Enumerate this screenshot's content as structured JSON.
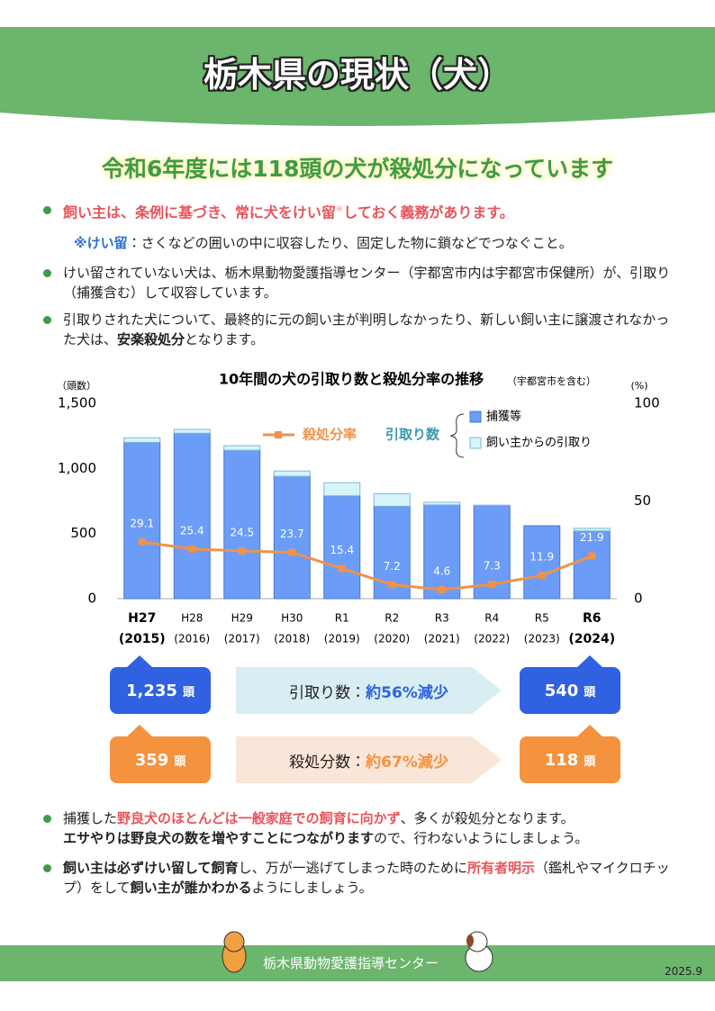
{
  "header": {
    "title": "栃木県の現状（犬）"
  },
  "headline": "令和6年度には118頭の犬が殺処分になっています",
  "intro": {
    "duty": [
      "飼い主は、条例に基づき、常に犬をけい留",
      "※",
      "しておく義務があります。"
    ],
    "note": [
      "※けい留",
      "：さくなどの囲いの中に収容したり、固定した物に鎖などでつなぐこと。"
    ],
    "p1": "けい留されていない犬は、栃木県動物愛護指導センター（宇都宮市内は宇都宮市保健所）が、引取り（捕獲含む）して収容しています。",
    "p2": [
      "引取りされた犬について、最終的に元の飼い主が判明しなかったり、新しい飼い主に譲渡されなかった犬は、",
      "安楽殺処分",
      "となります。"
    ]
  },
  "chart_data": {
    "type": "bar",
    "title": "10年間の犬の引取り数と殺処分率の推移",
    "subtitle": "（宇都宮市を含む）",
    "y_label": "（頭数）",
    "y2_label": "(%)",
    "legend_group": "引取り数",
    "categories": [
      "H27",
      "H28",
      "H29",
      "H30",
      "R1",
      "R2",
      "R3",
      "R4",
      "R5",
      "R6"
    ],
    "category_years": [
      "(2015)",
      "(2016)",
      "(2017)",
      "(2018)",
      "(2019)",
      "(2020)",
      "(2021)",
      "(2022)",
      "(2023)",
      "(2024)"
    ],
    "stacked": true,
    "series": [
      {
        "name": "捕獲等",
        "color": "#6b9cf7",
        "values": [
          1200,
          1270,
          1140,
          940,
          790,
          710,
          720,
          715,
          560,
          520
        ]
      },
      {
        "name": "飼い主からの引取り",
        "color": "#d6f5fb",
        "values": [
          35,
          30,
          35,
          40,
          100,
          95,
          20,
          3,
          0,
          20
        ]
      },
      {
        "name": "殺処分率",
        "color": "#f0924a",
        "type": "line",
        "axis": "y2",
        "values": [
          29.1,
          25.4,
          24.5,
          23.7,
          15.4,
          7.2,
          4.6,
          7.3,
          11.9,
          21.9
        ]
      }
    ],
    "ylim": [
      0,
      1500
    ],
    "yticks": [
      0,
      500,
      {
        "value": 1000,
        "label": "1,000"
      },
      {
        "value": 1500,
        "label": "1,500"
      }
    ],
    "y2lim": [
      0,
      100
    ],
    "y2ticks": [
      0,
      50,
      100
    ]
  },
  "comparison": {
    "unit": "頭",
    "intake": {
      "before": "1,235",
      "after": "540",
      "label": "引取り数：",
      "change": "約56%減少"
    },
    "euth": {
      "before": "359",
      "after": "118",
      "label": "殺処分数：",
      "change": "約67%減少"
    }
  },
  "outro": {
    "p3": [
      "捕獲した",
      "野良犬のほとんどは一般家庭での飼育に向かず",
      "、多くが殺処分となります。",
      "エサやりは野良犬の数を増やすことにつながります",
      "ので、行わないようにしましょう。"
    ],
    "p4": [
      "飼い主は必ずけい留して飼育",
      "し、万が一逃げてしまった時のために",
      "所有者明示",
      "（鑑札やマイクロチップ）をして",
      "飼い主が誰かわかる",
      "ようにしましょう。"
    ]
  },
  "footer": {
    "org": "栃木県動物愛護指導センター",
    "date": "2025.9"
  }
}
